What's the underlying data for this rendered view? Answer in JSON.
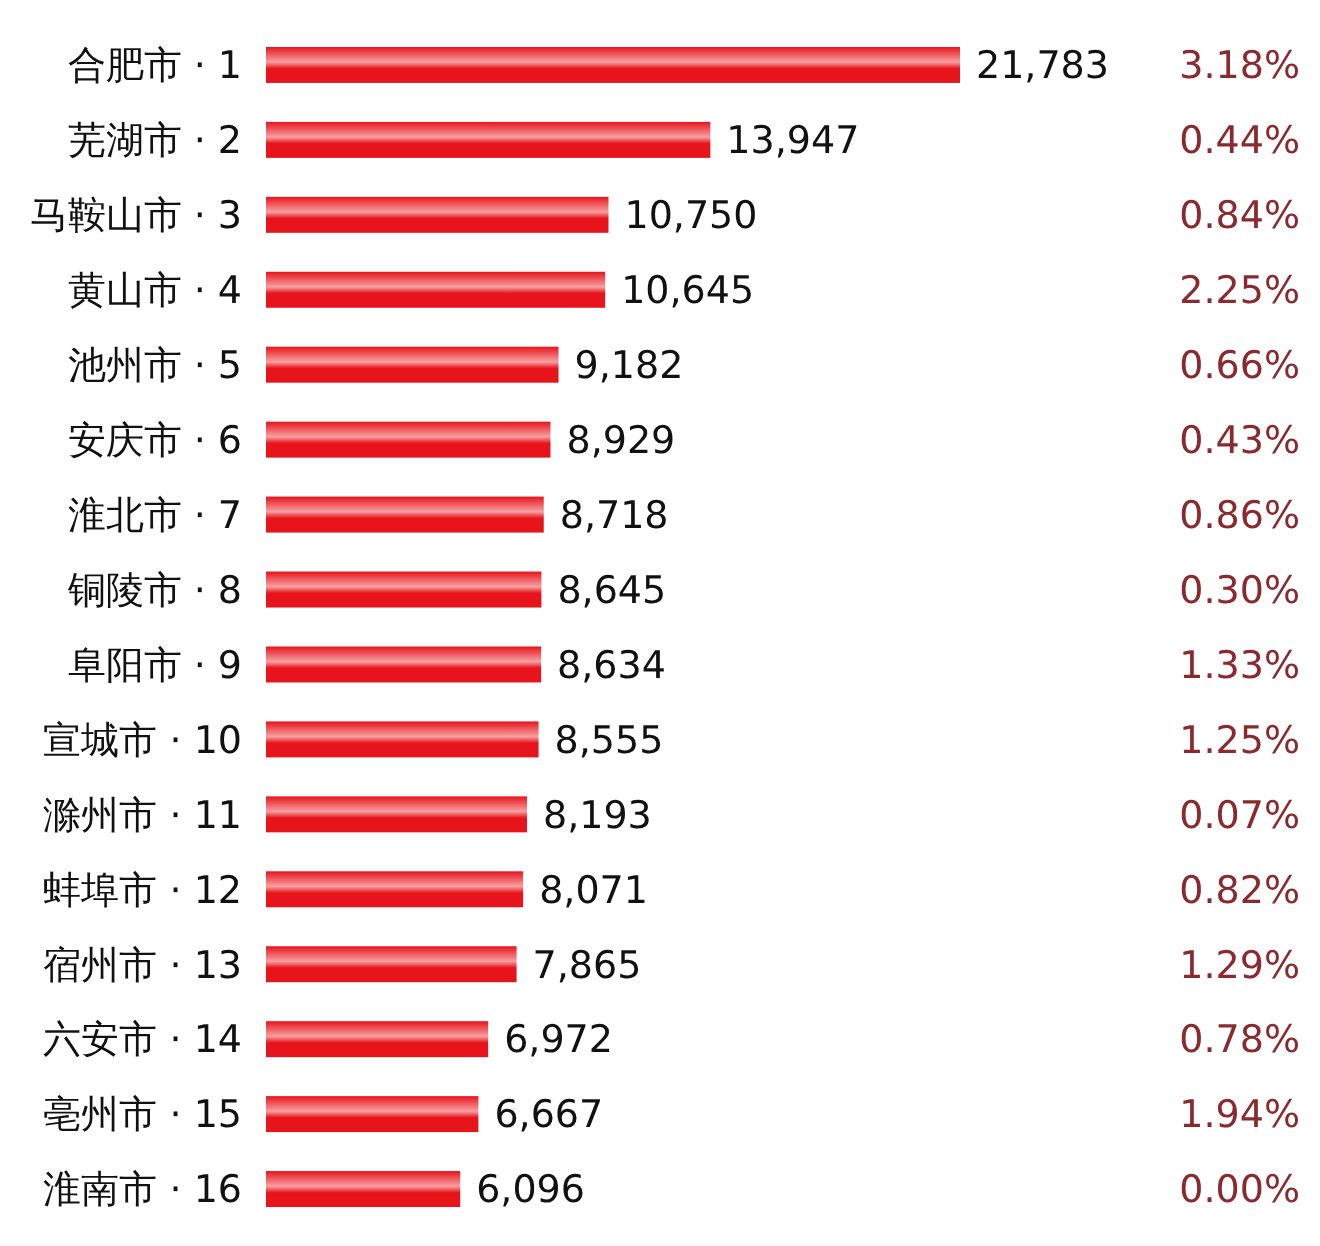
{
  "chart_data": {
    "type": "bar",
    "orientation": "horizontal",
    "categories": [
      "合肥市 · 1",
      "芜湖市 · 2",
      "马鞍山市 · 3",
      "黄山市 · 4",
      "池州市 · 5",
      "安庆市 · 6",
      "淮北市 · 7",
      "铜陵市 · 8",
      "阜阳市 · 9",
      "宣城市 · 10",
      "滁州市 · 11",
      "蚌埠市 · 12",
      "宿州市 · 13",
      "六安市 · 14",
      "亳州市 · 15",
      "淮南市 · 16"
    ],
    "values": [
      21783,
      13947,
      10750,
      10645,
      9182,
      8929,
      8718,
      8645,
      8634,
      8555,
      8193,
      8071,
      7865,
      6972,
      6667,
      6096
    ],
    "value_labels": [
      "21,783",
      "13,947",
      "10,750",
      "10,645",
      "9,182",
      "8,929",
      "8,718",
      "8,645",
      "8,634",
      "8,555",
      "8,193",
      "8,071",
      "7,865",
      "6,972",
      "6,667",
      "6,096"
    ],
    "color": "#e8141b",
    "tick_labels": "y",
    "annotations": [
      "3.18%",
      "0.44%",
      "0.84%",
      "2.25%",
      "0.66%",
      "0.43%",
      "0.86%",
      "0.30%",
      "1.33%",
      "1.25%",
      "0.07%",
      "0.82%",
      "1.29%",
      "0.78%",
      "1.94%",
      "0.00%"
    ]
  }
}
